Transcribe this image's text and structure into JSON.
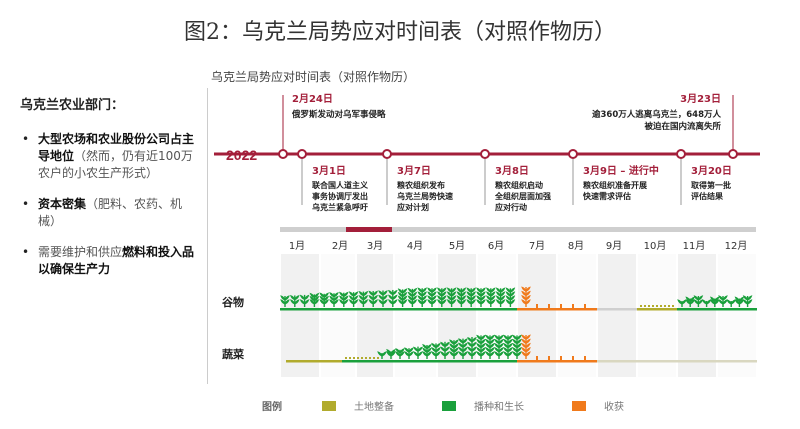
{
  "title": "图2：乌克兰局势应对时间表（对照作物历）",
  "left": {
    "heading": "乌克兰农业部门：",
    "bullets": [
      {
        "strong": "大型农场和农业股份公司占主导地位",
        "rest": "（然而，仍有近100万农户的小农生产形式）"
      },
      {
        "strong": "资本密集",
        "rest": "（肥料、农药、机械）"
      },
      {
        "pre": "需要维护和供应",
        "strong": "燃料和投入品以确保生产力",
        "rest": ""
      }
    ]
  },
  "chart": {
    "subtitle": "乌克兰局势应对时间表（对照作物历）",
    "year": "2022",
    "events_top": [
      {
        "date": "2月24日",
        "text": [
          "俄罗斯发动对乌军事侵略"
        ]
      },
      {
        "date": "3月23日",
        "text": [
          "逾360万人逃离乌克兰，648万人",
          "被迫在国内流离失所"
        ]
      }
    ],
    "events_bottom": [
      {
        "date": "3月1日",
        "text": [
          "联合国人道主义",
          "事务协调厅发出",
          "乌克兰紧急呼吁"
        ]
      },
      {
        "date": "3月7日",
        "text": [
          "粮农组织发布",
          "乌克兰局势快速",
          "应对计划"
        ]
      },
      {
        "date": "3月8日",
        "text": [
          "粮农组织启动",
          "全组织层面加强",
          "应对行动"
        ]
      },
      {
        "date": "3月9日 – 进行中",
        "text": [
          "粮农组织准备开展",
          "快速需求评估"
        ]
      },
      {
        "date": "3月20日",
        "text": [
          "取得第一批",
          "评估结果"
        ]
      }
    ],
    "months": [
      "1月",
      "2月",
      "3月",
      "4月",
      "5月",
      "6月",
      "7月",
      "8月",
      "9月",
      "10月",
      "11月",
      "12月"
    ],
    "crops": [
      "谷物",
      "蔬菜"
    ],
    "legend_label": "图例",
    "legend": [
      {
        "name": "土地整备",
        "color": "#b1ab2d"
      },
      {
        "name": "播种和生长",
        "color": "#1aa03c"
      },
      {
        "name": "收获",
        "color": "#f07a1c"
      }
    ]
  },
  "colors": {
    "accent": "#a31f3a",
    "grow": "#1aa03c",
    "harvest": "#f07a1c",
    "prep": "#b1ab2d"
  }
}
